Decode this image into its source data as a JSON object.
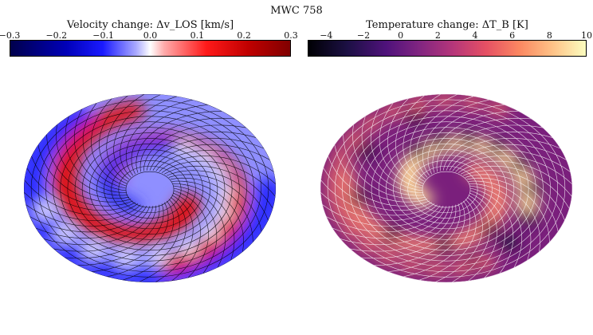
{
  "title": "MWC 758",
  "chart_data": [
    {
      "type": "heatmap",
      "title": "Velocity change: Δv_LOS [km/s]",
      "colorbar_label": "Velocity change: Δv_LOS [km/s]",
      "colormap": "seismic",
      "range": [
        -0.3,
        0.3
      ],
      "ticks": [
        "−0.3",
        "−0.2",
        "−0.1",
        "0.0",
        "0.1",
        "0.2",
        "0.3"
      ],
      "tick_values": [
        -0.3,
        -0.2,
        -0.1,
        0.0,
        0.1,
        0.2,
        0.3
      ],
      "colors": {
        "low": "#00004c",
        "mid": "#ffffff",
        "high": "#800000"
      }
    },
    {
      "type": "heatmap",
      "title": "Temperature change: ΔT_B [K]",
      "colorbar_label": "Temperature change: ΔT_B [K]",
      "colormap": "magma",
      "range": [
        -5,
        10
      ],
      "ticks": [
        "−4",
        "−2",
        "0",
        "2",
        "4",
        "6",
        "8",
        "10"
      ],
      "tick_values": [
        -4,
        -2,
        0,
        2,
        4,
        6,
        8,
        10
      ],
      "colors": {
        "low": "#000004",
        "mid": "#b5367a",
        "high": "#fcfdbf"
      }
    }
  ]
}
